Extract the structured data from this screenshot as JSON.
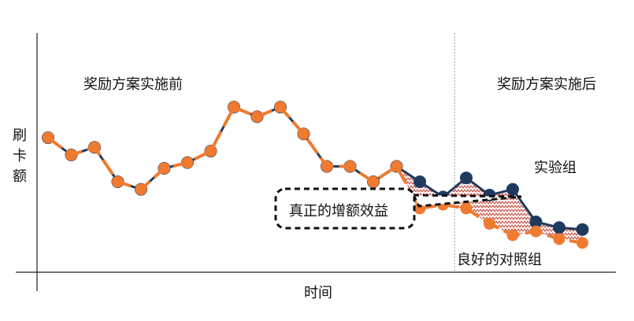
{
  "chart_data": {
    "type": "line",
    "xlabel": "时间",
    "ylabel": "刷卡额",
    "grid": false,
    "period_labels": {
      "before": "奖励方案实施前",
      "after": "奖励方案实施后"
    },
    "annotations": {
      "treatment": "实验组",
      "effect": "真正的增额效益",
      "control": "良好的对照组"
    },
    "colors": {
      "treatment": "#1f3a5f",
      "control": "#f07a30",
      "effect_hatch": "#c0392b",
      "axis": "#222222",
      "divider": "#999999"
    },
    "divider_x": 17.5,
    "xlim": [
      0,
      23.4
    ],
    "ylim": [
      0,
      100
    ],
    "series": [
      {
        "name": "实验组",
        "x": [
          0,
          1,
          2,
          3,
          4,
          5,
          6,
          7,
          8,
          9,
          10,
          11,
          12,
          13,
          14,
          15,
          16,
          17,
          18,
          19,
          20,
          21,
          22,
          23
        ],
        "values": [
          65,
          56,
          60,
          42,
          38,
          49,
          52,
          58,
          81,
          76,
          81,
          67,
          50,
          50,
          42,
          50,
          42,
          34,
          44,
          35,
          38,
          21,
          18,
          17
        ]
      },
      {
        "name": "良好的对照组",
        "x": [
          0,
          1,
          2,
          3,
          4,
          5,
          6,
          7,
          8,
          9,
          10,
          11,
          12,
          13,
          14,
          15,
          16,
          17,
          18,
          19,
          20,
          21,
          22,
          23
        ],
        "values": [
          65,
          56,
          60,
          42,
          38,
          49,
          52,
          58,
          81,
          76,
          81,
          67,
          50,
          50,
          42,
          50,
          28,
          30,
          28,
          20,
          14,
          16,
          12,
          10
        ]
      }
    ]
  }
}
